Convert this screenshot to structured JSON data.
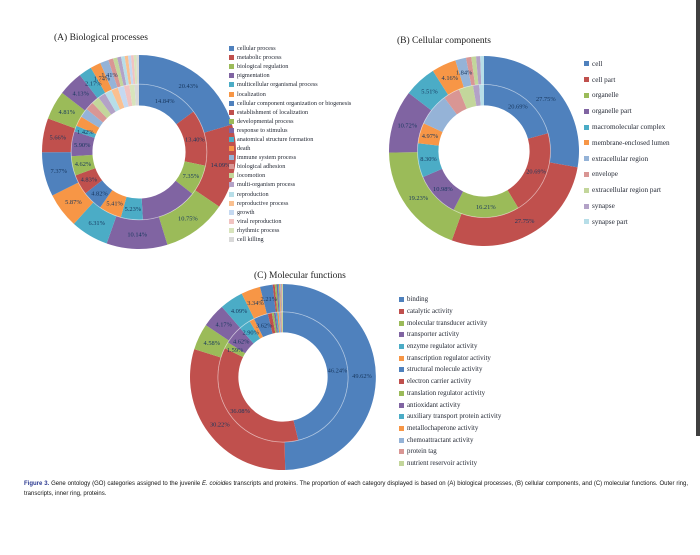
{
  "figure": {
    "caption_label": "Figure 3.",
    "caption_text_1": " Gene ontology (GO) categories assigned to the juvenile ",
    "caption_italic": "E. coioides",
    "caption_text_2": " transcripts and proteins. The proportion of each category displayed is based on (A) biological processes, (B) cellular components, and (C) molecular functions. Outer ring, transcripts, inner ring, proteins."
  },
  "chart_data": [
    {
      "type": "pie",
      "variant": "double-ring donut",
      "title": "(A) Biological processes",
      "rings": {
        "outer": "transcripts",
        "inner": "proteins"
      },
      "note": "values without a visible percent label are estimated from arc angles",
      "categories": [
        "cellular process",
        "metabolic process",
        "biological regulation",
        "pigmentation",
        "multicellular organismal process",
        "localization",
        "cellular component organization or biogenesis",
        "establishment of localization",
        "developmental process",
        "response to stimulus",
        "anatomical structure formation",
        "death",
        "immune system process",
        "biological adhesion",
        "locomotion",
        "multi-organism process",
        "reproduction",
        "reproductive process",
        "growth",
        "viral reproduction",
        "rhythmic process",
        "cell killing"
      ],
      "colors": [
        "#4F81BD",
        "#C0504D",
        "#9BBB59",
        "#8064A2",
        "#4BACC6",
        "#F79646",
        "#4F81BD",
        "#C0504D",
        "#9BBB59",
        "#8064A2",
        "#4BACC6",
        "#F79646",
        "#95B3D7",
        "#D99694",
        "#C3D69B",
        "#B3A2C7",
        "#B7DEE8",
        "#FAC090",
        "#C5D9F1",
        "#F1C3C1",
        "#D8E4BC",
        "#D9D9D9"
      ],
      "series": [
        {
          "name": "transcripts (outer ring)",
          "values": [
            20.43,
            14.09,
            10.75,
            10.14,
            6.31,
            5.87,
            7.37,
            5.66,
            4.81,
            4.13,
            2.17,
            1.74,
            1.41,
            0.8,
            0.7,
            0.65,
            0.6,
            0.55,
            0.5,
            0.45,
            0.44,
            0.43
          ],
          "labels": [
            "20.43%",
            "14.09%",
            "10.75%",
            "10.14%",
            "6.31%",
            "5.87%",
            "7.37%",
            "5.66%",
            "4.81%",
            "4.13%",
            "2.17%",
            "1.74%",
            "1.41%",
            null,
            null,
            null,
            null,
            null,
            null,
            null,
            null,
            null
          ]
        },
        {
          "name": "proteins (inner ring)",
          "values": [
            14.84,
            13.4,
            7.35,
            13.5,
            5.23,
            5.41,
            4.82,
            4.83,
            4.62,
            5.9,
            1.42,
            2.4,
            2.2,
            2.0,
            1.9,
            1.8,
            1.7,
            1.6,
            1.5,
            1.3,
            1.2,
            1.08
          ],
          "labels": [
            "14.84%",
            "13.40%",
            "7.35%",
            null,
            "5.23%",
            "5.41%",
            "4.82%",
            "4.83%",
            "4.62%",
            "5.90%",
            "1.42%",
            null,
            null,
            null,
            null,
            null,
            null,
            null,
            null,
            null,
            null,
            null
          ]
        }
      ]
    },
    {
      "type": "pie",
      "variant": "double-ring donut",
      "title": "(B) Cellular components",
      "rings": {
        "outer": "transcripts",
        "inner": "proteins"
      },
      "note": "values without a visible percent label are estimated from arc angles",
      "categories": [
        "cell",
        "cell part",
        "organelle",
        "organelle part",
        "macromolecular complex",
        "membrane-enclosed lumen",
        "extracellular region",
        "envelope",
        "extracellular region part",
        "synapse",
        "synapse part"
      ],
      "colors": [
        "#4F81BD",
        "#C0504D",
        "#9BBB59",
        "#8064A2",
        "#4BACC6",
        "#F79646",
        "#95B3D7",
        "#D99694",
        "#C3D69B",
        "#B3A2C7",
        "#B7DEE8"
      ],
      "series": [
        {
          "name": "transcripts (outer ring)",
          "values": [
            27.75,
            27.75,
            19.23,
            10.72,
            5.51,
            4.16,
            1.84,
            0.9,
            0.8,
            0.7,
            0.64
          ],
          "labels": [
            "27.75%",
            "27.75%",
            "19.23%",
            "10.72%",
            "5.51%",
            "4.16%",
            "1.84%",
            null,
            null,
            null,
            null
          ]
        },
        {
          "name": "proteins (inner ring)",
          "values": [
            20.69,
            20.69,
            16.21,
            10.98,
            8.3,
            4.97,
            8.0,
            4.0,
            3.5,
            1.5,
            1.16
          ],
          "labels": [
            "20.69%",
            "20.69%",
            "16.21%",
            "10.98%",
            "8.30%",
            "4.97%",
            null,
            null,
            null,
            null,
            null
          ]
        }
      ]
    },
    {
      "type": "pie",
      "variant": "double-ring donut",
      "title": "(C) Molecular functions",
      "rings": {
        "outer": "transcripts",
        "inner": "proteins"
      },
      "note": "values without a visible percent label are estimated from arc angles",
      "categories": [
        "binding",
        "catalytic activity",
        "molecular transducer activity",
        "transporter activity",
        "enzyme regulator activity",
        "transcription regulator activity",
        "structural molecule activity",
        "electron carrier activity",
        "translation regulator activity",
        "antioxidant activity",
        "auxiliary transport protein activity",
        "metallochaperone activity",
        "chemoattractant activity",
        "protein tag",
        "nutrient reservoir activity"
      ],
      "colors": [
        "#4F81BD",
        "#C0504D",
        "#9BBB59",
        "#8064A2",
        "#4BACC6",
        "#F79646",
        "#4F81BD",
        "#C0504D",
        "#9BBB59",
        "#8064A2",
        "#4BACC6",
        "#F79646",
        "#95B3D7",
        "#D99694",
        "#C3D69B"
      ],
      "series": [
        {
          "name": "transcripts (outer ring)",
          "values": [
            49.62,
            30.22,
            4.58,
            4.17,
            4.09,
            3.34,
            2.21,
            0.35,
            0.3,
            0.25,
            0.2,
            0.18,
            0.16,
            0.16,
            0.17
          ],
          "labels": [
            "49.62%",
            "30.22%",
            "4.58%",
            "4.17%",
            "4.09%",
            "3.34%",
            "2.21%",
            null,
            null,
            null,
            null,
            null,
            null,
            null,
            null
          ]
        },
        {
          "name": "proteins (inner ring)",
          "values": [
            46.24,
            36.08,
            1.59,
            4.62,
            2.9,
            1.2,
            3.62,
            1.0,
            0.5,
            0.45,
            0.4,
            0.35,
            0.35,
            0.35,
            0.35
          ],
          "labels": [
            "46.24%",
            "36.08%",
            "1.59%",
            "4.62%",
            "2.90%",
            null,
            "3.62%",
            null,
            null,
            null,
            null,
            null,
            null,
            null,
            null
          ]
        }
      ]
    }
  ]
}
